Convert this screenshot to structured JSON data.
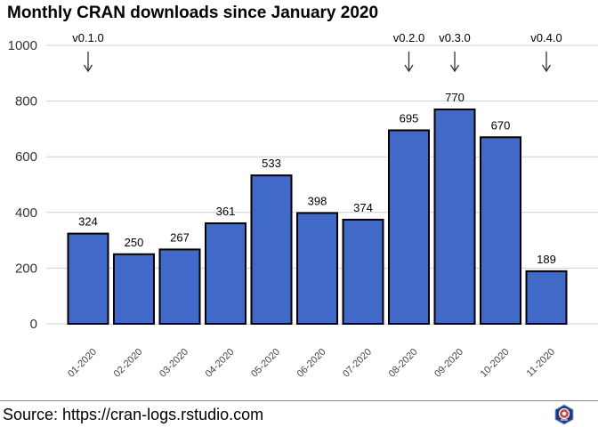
{
  "chart_data": {
    "type": "bar",
    "title": "Monthly CRAN downloads since January 2020",
    "xlabel": "",
    "ylabel": "",
    "categories": [
      "01-2020",
      "02-2020",
      "03-2020",
      "04-2020",
      "05-2020",
      "06-2020",
      "07-2020",
      "08-2020",
      "09-2020",
      "10-2020",
      "11-2020"
    ],
    "values": [
      324,
      250,
      267,
      361,
      533,
      398,
      374,
      695,
      770,
      670,
      189
    ],
    "ylim": [
      0,
      1000
    ],
    "yticks": [
      0,
      200,
      400,
      600,
      800,
      1000
    ],
    "grid": true,
    "bar_color": "#4169c8",
    "annotations": [
      {
        "category": "01-2020",
        "label": "v0.1.0"
      },
      {
        "category": "08-2020",
        "label": "v0.2.0"
      },
      {
        "category": "09-2020",
        "label": "v0.3.0"
      },
      {
        "category": "11-2020",
        "label": "v0.4.0"
      }
    ]
  },
  "footer": {
    "source": "Source: https://cran-logs.rstudio.com"
  }
}
